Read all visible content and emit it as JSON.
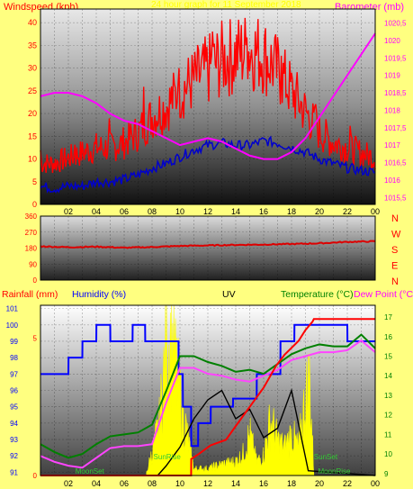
{
  "header": {
    "windspeed_label": "Windspeed (kph)",
    "barometer_label": "Barometer (mb)",
    "date_text": "24 hour graph for 11 September 2018"
  },
  "lower_header": {
    "rainfall_label": "Rainfall (mm)",
    "humidity_label": "Humidity (%)",
    "uv_label": "UV",
    "temperature_label": "Temperature (°C)",
    "dewpoint_label": "Dew Point (°C)"
  },
  "direction_labels": [
    "N",
    "W",
    "S",
    "E",
    "N"
  ],
  "annotations": {
    "sunrise": "SunRise",
    "sunset": "SunSet",
    "moonset": "MoonSet",
    "moonrise": "MoonRise"
  },
  "colors": {
    "background": "#ffff80",
    "windspeed": "#ff0000",
    "wind_avg": "#0000cc",
    "barometer": "#ff00ff",
    "direction": "#dd0000",
    "humidity": "#0000ff",
    "rainfall": "#ff0000",
    "solar": "#ffff00",
    "temperature": "#008000",
    "dewpoint": "#ff44ff",
    "uv": "#000000",
    "axis_left_text": "#ff0000",
    "axis_right_text": "#ff00ff",
    "temp_axis_text": "#008000"
  },
  "chart_data": [
    {
      "type": "line",
      "title": "24 hour graph for 11 September 2018",
      "x_ticks": [
        "02",
        "04",
        "06",
        "08",
        "10",
        "12",
        "14",
        "16",
        "18",
        "20",
        "22",
        "00"
      ],
      "xlim": [
        0,
        24
      ],
      "y_left_label": "Windspeed (kph)",
      "y_left_ticks": [
        0,
        5,
        10,
        15,
        20,
        25,
        30,
        35,
        40
      ],
      "y_left_lim": [
        0,
        43
      ],
      "y_right_label": "Barometer (mb)",
      "y_right_ticks": [
        1015.5,
        1016,
        1016.5,
        1017,
        1017.5,
        1018,
        1018.5,
        1019,
        1019.5,
        1020,
        1020.5
      ],
      "y_right_lim": [
        1015.3,
        1020.9
      ],
      "series": [
        {
          "name": "Windspeed (kph)",
          "axis": "left",
          "x": [
            0,
            1,
            2,
            3,
            4,
            5,
            6,
            7,
            8,
            9,
            10,
            11,
            12,
            13,
            14,
            15,
            16,
            17,
            18,
            19,
            20,
            21,
            22,
            23,
            24
          ],
          "values": [
            8,
            8,
            9,
            10,
            11,
            11,
            12,
            14,
            17,
            19,
            22,
            24,
            26,
            28,
            29,
            30,
            29,
            26,
            22,
            18,
            14,
            12,
            11,
            10,
            9
          ]
        },
        {
          "x": [
            0,
            1,
            2,
            3,
            4,
            5,
            6,
            7,
            8,
            9,
            10,
            11,
            12,
            13,
            14,
            15,
            16,
            17,
            18,
            19,
            20,
            21,
            22,
            23,
            24
          ],
          "values": [
            4,
            3.5,
            4,
            4,
            5,
            5,
            5.5,
            6.5,
            8,
            9,
            10.5,
            12,
            13,
            13.5,
            13,
            13,
            14,
            13.5,
            12.5,
            11.5,
            10,
            9,
            8,
            7.5,
            7
          ]
        },
        {
          "name": "Barometer (mb)",
          "axis": "right",
          "x": [
            0,
            1,
            2,
            3,
            4,
            5,
            6,
            7,
            8,
            9,
            10,
            11,
            12,
            13,
            14,
            15,
            16,
            17,
            18,
            19,
            20,
            21,
            22,
            23,
            24
          ],
          "values": [
            1018.4,
            1018.5,
            1018.5,
            1018.4,
            1018.2,
            1017.9,
            1017.7,
            1017.6,
            1017.4,
            1017.2,
            1017.0,
            1017.1,
            1017.2,
            1017.1,
            1016.9,
            1016.7,
            1016.6,
            1016.6,
            1016.8,
            1017.2,
            1017.8,
            1018.4,
            1019.0,
            1019.6,
            1020.2
          ]
        }
      ]
    },
    {
      "type": "line",
      "x_ticks": [
        "02",
        "04",
        "06",
        "08",
        "10",
        "12",
        "14",
        "16",
        "18",
        "20",
        "22",
        "00"
      ],
      "xlim": [
        0,
        24
      ],
      "y_ticks": [
        0,
        90,
        180,
        270,
        360
      ],
      "ylim": [
        0,
        360
      ],
      "y_right_labels": [
        "N",
        "W",
        "S",
        "E",
        "N"
      ],
      "series": [
        {
          "x": [
            0,
            2,
            4,
            6,
            8,
            10,
            12,
            14,
            16,
            18,
            20,
            22,
            24
          ],
          "values": [
            190,
            185,
            188,
            182,
            186,
            192,
            195,
            198,
            200,
            203,
            207,
            215,
            218
          ]
        }
      ]
    },
    {
      "type": "line",
      "x_ticks": [
        "02",
        "04",
        "06",
        "08",
        "10",
        "12",
        "14",
        "16",
        "18",
        "20",
        "22",
        "00"
      ],
      "xlim": [
        0,
        24
      ],
      "y_humidity_label": "Humidity (%)",
      "y_humidity_ticks": [
        91,
        92,
        93,
        94,
        95,
        96,
        97,
        98,
        99,
        100,
        101
      ],
      "y_humidity_lim": [
        90.8,
        101.2
      ],
      "y_rain_label": "Rainfall (mm)",
      "y_rain_ticks": [
        0,
        5
      ],
      "y_temp_label": "Temperature (°C)",
      "y_temp_ticks": [
        9,
        10,
        11,
        12,
        13,
        14,
        15,
        16,
        17
      ],
      "y_temp_lim": [
        8.9,
        17.6
      ],
      "series": [
        {
          "name": "Humidity (%)",
          "axis": "humidity",
          "x": [
            0,
            2,
            2.01,
            3,
            3.01,
            4,
            4.01,
            5,
            5.01,
            6.6,
            6.61,
            7.5,
            7.51,
            9.9,
            9.91,
            10.2,
            10.21,
            10.8,
            10.81,
            11.3,
            11.31,
            12.2,
            12.21,
            13.8,
            13.81,
            15.5,
            15.51,
            17.2,
            17.21,
            18.2,
            18.21,
            22,
            22.01,
            24
          ],
          "values": [
            97,
            97,
            98,
            98,
            99,
            99,
            100,
            100,
            99,
            99,
            100,
            100,
            99,
            99,
            97,
            97,
            95,
            95,
            92.6,
            92.6,
            94,
            94,
            95,
            95,
            95.5,
            95.5,
            97,
            97,
            99,
            99,
            100,
            100,
            99,
            99
          ]
        },
        {
          "name": "Rainfall (mm)",
          "axis": "rain",
          "x": [
            0,
            10.8,
            10.81,
            11.4,
            12.2,
            13.3,
            14,
            15,
            16,
            16.9,
            17.5,
            18.5,
            19,
            19.5,
            19.6,
            24
          ],
          "values": [
            0,
            0,
            0.6,
            0.8,
            1.1,
            1.3,
            1.8,
            2.5,
            3.2,
            4.0,
            4.4,
            4.9,
            5.3,
            5.6,
            5.7,
            5.7
          ]
        },
        {
          "name": "Temperature (°C)",
          "axis": "temp",
          "x": [
            0,
            1,
            2,
            3,
            4,
            5,
            6,
            7,
            8,
            9,
            10,
            11,
            12,
            13,
            14,
            15,
            16,
            17,
            18,
            19,
            20,
            21,
            22,
            23,
            24
          ],
          "values": [
            10.5,
            10.1,
            9.8,
            10.0,
            10.5,
            10.9,
            11.0,
            11.1,
            11.5,
            13.2,
            15.0,
            15.0,
            14.7,
            14.5,
            14.2,
            14.3,
            14.1,
            14.6,
            15.1,
            15.4,
            15.6,
            15.5,
            15.5,
            16.1,
            15.4
          ]
        },
        {
          "name": "Dew Point (°C)",
          "axis": "temp",
          "x": [
            0,
            1,
            2,
            3,
            4,
            5,
            6,
            7,
            8,
            9,
            10,
            11,
            12,
            13,
            14,
            15,
            16,
            17,
            18,
            19,
            20,
            21,
            22,
            23,
            24
          ],
          "values": [
            9.9,
            9.6,
            9.4,
            9.3,
            9.8,
            10.3,
            10.4,
            10.4,
            10.5,
            12.6,
            14.4,
            14.4,
            14.1,
            14.0,
            13.8,
            13.7,
            14.0,
            14.3,
            14.8,
            15.0,
            15.2,
            15.2,
            15.3,
            15.8,
            15.2
          ]
        },
        {
          "name": "UV",
          "axis": "uv",
          "x": [
            0,
            8.4,
            9,
            10,
            11,
            12,
            13,
            14,
            15,
            16,
            17,
            18,
            19.2,
            24
          ],
          "values": [
            0,
            0,
            0.1,
            0.3,
            0.6,
            0.8,
            0.9,
            0.6,
            0.7,
            0.4,
            0.5,
            0.9,
            0.05,
            0
          ]
        },
        {
          "name": "Solar",
          "axis": "solar",
          "x": [
            7.6,
            8.5,
            9,
            9.4,
            9.8,
            10.3,
            10.6,
            11,
            12,
            13,
            14,
            14.5,
            15,
            15.5,
            16,
            16.5,
            17,
            17.5,
            18,
            18.5,
            19,
            19.3,
            19.6
          ],
          "values": [
            0.02,
            0.35,
            0.9,
            1.0,
            0.7,
            0.4,
            0.25,
            0.05,
            0.05,
            0.08,
            0.1,
            0.15,
            0.3,
            0.1,
            0.15,
            0.4,
            0.25,
            0.2,
            0.3,
            0.2,
            0.55,
            0.7,
            0.02
          ]
        }
      ]
    }
  ]
}
